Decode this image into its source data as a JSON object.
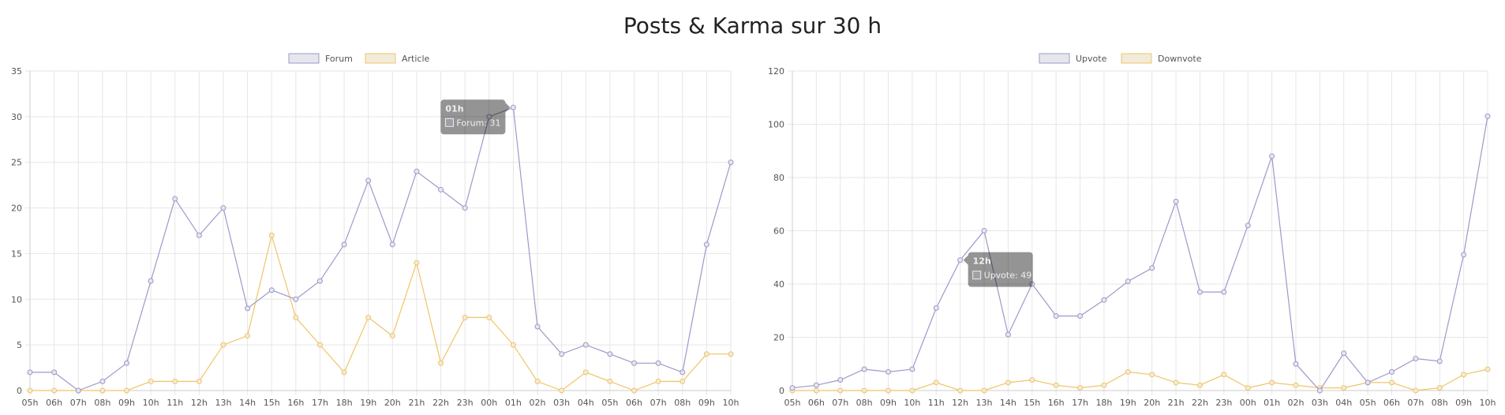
{
  "page": {
    "title": "Posts & Karma sur 30 h"
  },
  "chart_data": [
    {
      "type": "line",
      "categories": [
        "05h",
        "06h",
        "07h",
        "08h",
        "09h",
        "10h",
        "11h",
        "12h",
        "13h",
        "14h",
        "15h",
        "16h",
        "17h",
        "18h",
        "19h",
        "20h",
        "21h",
        "22h",
        "23h",
        "00h",
        "01h",
        "02h",
        "03h",
        "04h",
        "05h",
        "06h",
        "07h",
        "08h",
        "09h",
        "10h"
      ],
      "series": [
        {
          "name": "Forum",
          "color": "#9f98c9",
          "fill": "#e6e6ee",
          "values": [
            2,
            2,
            0,
            1,
            3,
            12,
            21,
            17,
            20,
            9,
            11,
            10,
            12,
            16,
            23,
            16,
            24,
            22,
            20,
            30,
            31,
            7,
            4,
            5,
            4,
            3,
            3,
            2,
            16,
            25
          ]
        },
        {
          "name": "Article",
          "color": "#f0c466",
          "fill": "#f2ebd9",
          "values": [
            0,
            0,
            0,
            0,
            0,
            1,
            1,
            1,
            5,
            6,
            17,
            8,
            5,
            2,
            8,
            6,
            14,
            3,
            8,
            8,
            5,
            1,
            0,
            2,
            1,
            0,
            1,
            1,
            4,
            4
          ]
        }
      ],
      "ylim": [
        0,
        35
      ],
      "yticks": [
        0,
        5,
        10,
        15,
        20,
        25,
        30,
        35
      ],
      "grid": true,
      "legend": "top-center",
      "tooltip": {
        "title": "01h",
        "text": "Forum: 31",
        "category_index": 20
      }
    },
    {
      "type": "line",
      "categories": [
        "05h",
        "06h",
        "07h",
        "08h",
        "09h",
        "10h",
        "11h",
        "12h",
        "13h",
        "14h",
        "15h",
        "16h",
        "17h",
        "18h",
        "19h",
        "20h",
        "21h",
        "22h",
        "23h",
        "00h",
        "01h",
        "02h",
        "03h",
        "04h",
        "05h",
        "06h",
        "07h",
        "08h",
        "09h",
        "10h"
      ],
      "series": [
        {
          "name": "Upvote",
          "color": "#9f98c9",
          "fill": "#e6e6ee",
          "values": [
            1,
            2,
            4,
            8,
            7,
            8,
            31,
            49,
            60,
            21,
            40,
            28,
            28,
            34,
            41,
            46,
            71,
            37,
            37,
            62,
            88,
            10,
            0,
            14,
            3,
            7,
            12,
            11,
            51,
            103
          ]
        },
        {
          "name": "Downvote",
          "color": "#f0c466",
          "fill": "#f2ebd9",
          "values": [
            0,
            0,
            0,
            0,
            0,
            0,
            3,
            0,
            0,
            3,
            4,
            2,
            1,
            2,
            7,
            6,
            3,
            2,
            6,
            1,
            3,
            2,
            1,
            1,
            3,
            3,
            0,
            1,
            6,
            8
          ]
        }
      ],
      "ylim": [
        0,
        120
      ],
      "yticks": [
        0,
        20,
        40,
        60,
        80,
        100,
        120
      ],
      "grid": true,
      "legend": "top-center",
      "tooltip": {
        "title": "12h",
        "text": "Upvote: 49",
        "category_index": 7
      }
    }
  ]
}
